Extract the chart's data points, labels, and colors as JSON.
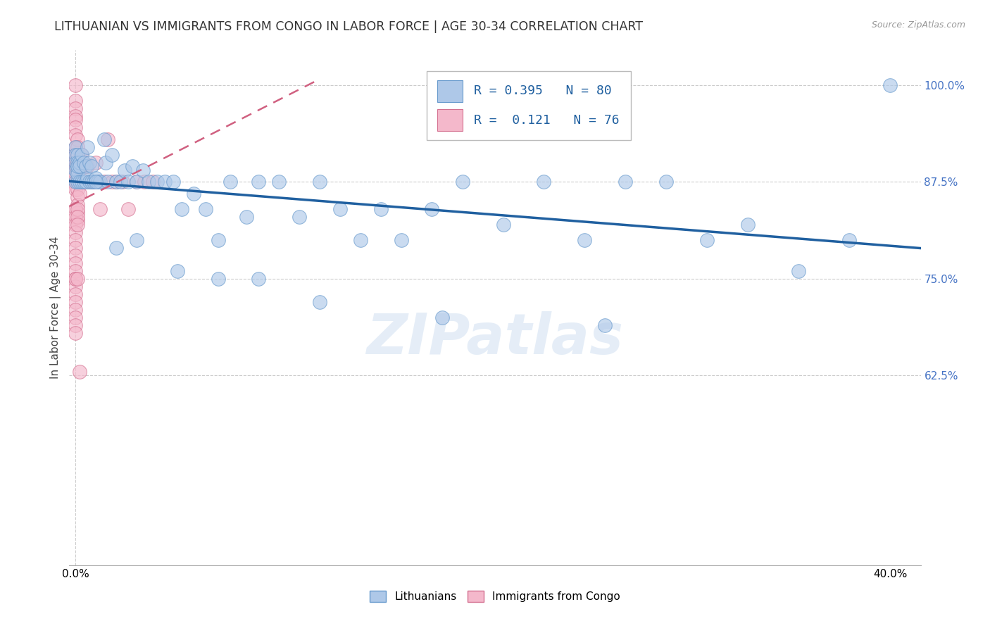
{
  "title": "LITHUANIAN VS IMMIGRANTS FROM CONGO IN LABOR FORCE | AGE 30-34 CORRELATION CHART",
  "source": "Source: ZipAtlas.com",
  "ylabel": "In Labor Force | Age 30-34",
  "xmin": -0.003,
  "xmax": 0.415,
  "ymin": 0.38,
  "ymax": 1.045,
  "ytick_vals": [
    0.625,
    0.75,
    0.875,
    1.0
  ],
  "ytick_labels": [
    "62.5%",
    "75.0%",
    "87.5%",
    "100.0%"
  ],
  "xtick_vals": [
    0.0,
    0.4
  ],
  "xtick_labels": [
    "0.0%",
    "40.0%"
  ],
  "grid_color": "#cccccc",
  "background_color": "#ffffff",
  "title_fontsize": 12.5,
  "axis_label_fontsize": 11,
  "tick_fontsize": 11,
  "blue_color": "#aec8e8",
  "blue_edge_color": "#6699cc",
  "pink_color": "#f4b8cb",
  "pink_edge_color": "#d47090",
  "blue_line_color": "#2060a0",
  "pink_line_color": "#d06080",
  "legend_R_blue": "0.395",
  "legend_N_blue": "80",
  "legend_R_pink": "0.121",
  "legend_N_pink": "76",
  "legend_label_blue": "Lithuanians",
  "legend_label_pink": "Immigrants from Congo",
  "watermark": "ZIPatlas",
  "blue_x": [
    0.0,
    0.0,
    0.0,
    0.0,
    0.0,
    0.001,
    0.001,
    0.001,
    0.001,
    0.001,
    0.001,
    0.002,
    0.002,
    0.002,
    0.003,
    0.003,
    0.004,
    0.004,
    0.005,
    0.005,
    0.006,
    0.006,
    0.007,
    0.007,
    0.008,
    0.008,
    0.009,
    0.01,
    0.011,
    0.012,
    0.014,
    0.015,
    0.016,
    0.018,
    0.02,
    0.022,
    0.024,
    0.026,
    0.028,
    0.03,
    0.033,
    0.036,
    0.04,
    0.044,
    0.048,
    0.052,
    0.058,
    0.064,
    0.07,
    0.076,
    0.084,
    0.09,
    0.1,
    0.11,
    0.12,
    0.13,
    0.14,
    0.15,
    0.16,
    0.175,
    0.19,
    0.21,
    0.23,
    0.25,
    0.27,
    0.29,
    0.31,
    0.33,
    0.355,
    0.38,
    0.01,
    0.02,
    0.03,
    0.05,
    0.07,
    0.09,
    0.12,
    0.18,
    0.26,
    0.4
  ],
  "blue_y": [
    0.92,
    0.91,
    0.9,
    0.89,
    0.875,
    0.91,
    0.9,
    0.89,
    0.875,
    0.885,
    0.895,
    0.9,
    0.875,
    0.895,
    0.91,
    0.875,
    0.9,
    0.875,
    0.895,
    0.875,
    0.92,
    0.88,
    0.9,
    0.875,
    0.895,
    0.875,
    0.875,
    0.88,
    0.875,
    0.875,
    0.93,
    0.9,
    0.875,
    0.91,
    0.875,
    0.875,
    0.89,
    0.875,
    0.895,
    0.875,
    0.89,
    0.875,
    0.875,
    0.875,
    0.875,
    0.84,
    0.86,
    0.84,
    0.8,
    0.875,
    0.83,
    0.875,
    0.875,
    0.83,
    0.875,
    0.84,
    0.8,
    0.84,
    0.8,
    0.84,
    0.875,
    0.82,
    0.875,
    0.8,
    0.875,
    0.875,
    0.8,
    0.82,
    0.76,
    0.8,
    0.875,
    0.79,
    0.8,
    0.76,
    0.75,
    0.75,
    0.72,
    0.7,
    0.69,
    1.0
  ],
  "pink_x": [
    0.0,
    0.0,
    0.0,
    0.0,
    0.0,
    0.0,
    0.0,
    0.0,
    0.0,
    0.0,
    0.0,
    0.0,
    0.0,
    0.0,
    0.001,
    0.001,
    0.001,
    0.001,
    0.001,
    0.001,
    0.001,
    0.001,
    0.001,
    0.001,
    0.001,
    0.001,
    0.002,
    0.002,
    0.002,
    0.002,
    0.003,
    0.003,
    0.003,
    0.004,
    0.004,
    0.005,
    0.005,
    0.006,
    0.007,
    0.008,
    0.009,
    0.01,
    0.011,
    0.012,
    0.014,
    0.016,
    0.018,
    0.02,
    0.023,
    0.026,
    0.03,
    0.034,
    0.038,
    0.0,
    0.0,
    0.0,
    0.0,
    0.0,
    0.0,
    0.0,
    0.0,
    0.0,
    0.0,
    0.0,
    0.0,
    0.0,
    0.0,
    0.0,
    0.0,
    0.0,
    0.0,
    0.001,
    0.001,
    0.001,
    0.001,
    0.002
  ],
  "pink_y": [
    1.0,
    0.98,
    0.97,
    0.96,
    0.955,
    0.945,
    0.935,
    0.92,
    0.91,
    0.9,
    0.895,
    0.885,
    0.875,
    0.865,
    0.93,
    0.92,
    0.91,
    0.9,
    0.895,
    0.885,
    0.875,
    0.865,
    0.855,
    0.845,
    0.835,
    0.825,
    0.9,
    0.89,
    0.875,
    0.86,
    0.91,
    0.895,
    0.875,
    0.9,
    0.875,
    0.895,
    0.875,
    0.895,
    0.875,
    0.875,
    0.875,
    0.9,
    0.875,
    0.84,
    0.875,
    0.93,
    0.875,
    0.875,
    0.875,
    0.84,
    0.875,
    0.875,
    0.875,
    0.84,
    0.83,
    0.82,
    0.81,
    0.8,
    0.79,
    0.78,
    0.77,
    0.76,
    0.75,
    0.74,
    0.73,
    0.72,
    0.71,
    0.7,
    0.69,
    0.68,
    0.75,
    0.84,
    0.83,
    0.82,
    0.75,
    0.63
  ]
}
